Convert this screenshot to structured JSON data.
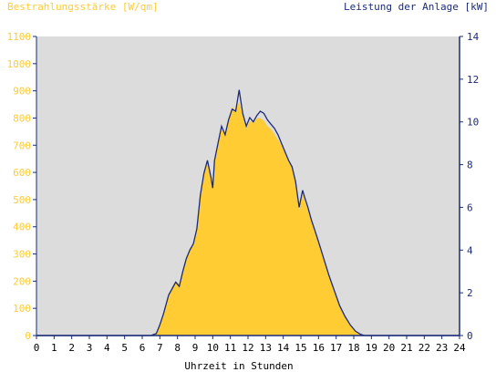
{
  "chart_data": {
    "type": "area",
    "left_axis_label": "Bestrahlungsstärke [W/qm]",
    "right_axis_label": "Leistung der Anlage [kW]",
    "xlabel": "Uhrzeit in Stunden",
    "x_ticks": [
      "0",
      "1",
      "2",
      "3",
      "4",
      "5",
      "6",
      "7",
      "8",
      "9",
      "10",
      "11",
      "12",
      "13",
      "14",
      "15",
      "16",
      "17",
      "18",
      "19",
      "20",
      "21",
      "22",
      "23",
      "24"
    ],
    "left_ticks": [
      "0",
      "100",
      "200",
      "300",
      "400",
      "500",
      "600",
      "700",
      "800",
      "900",
      "1000",
      "1100"
    ],
    "right_ticks": [
      "0",
      "2",
      "4",
      "6",
      "8",
      "10",
      "12",
      "14"
    ],
    "xlim": [
      0,
      24
    ],
    "ylim_left": [
      0,
      1100
    ],
    "ylim_right": [
      0,
      14
    ],
    "colors": {
      "irradiance": "#ffcc33",
      "power": "#1a2b7a",
      "plot_bg": "#dcdcdc",
      "left_axis_text": "#ffcc33",
      "right_axis_text": "#1a2b7a"
    },
    "series": [
      {
        "axis": "left",
        "style": "area",
        "x": [
          6.5,
          6.8,
          7.0,
          7.2,
          7.5,
          7.7,
          7.9,
          8.1,
          8.3,
          8.5,
          8.7,
          8.9,
          9.1,
          9.3,
          9.5,
          9.7,
          9.9,
          10.0,
          10.1,
          10.3,
          10.5,
          10.7,
          10.9,
          11.1,
          11.3,
          11.5,
          11.7,
          11.9,
          12.1,
          12.3,
          12.5,
          12.7,
          12.9,
          13.1,
          13.3,
          13.5,
          13.7,
          13.9,
          14.1,
          14.3,
          14.5,
          14.7,
          14.9,
          15.1,
          15.2,
          15.4,
          15.6,
          15.8,
          16.0,
          16.3,
          16.6,
          16.9,
          17.2,
          17.5,
          17.8,
          18.1,
          18.4,
          18.6,
          18.8,
          18.9
        ],
        "values": [
          0,
          10,
          40,
          80,
          150,
          180,
          200,
          190,
          240,
          290,
          320,
          340,
          400,
          520,
          600,
          640,
          580,
          540,
          650,
          700,
          760,
          740,
          790,
          840,
          830,
          860,
          810,
          760,
          790,
          780,
          800,
          800,
          790,
          770,
          760,
          740,
          720,
          700,
          670,
          640,
          620,
          560,
          460,
          520,
          500,
          460,
          420,
          380,
          340,
          280,
          220,
          160,
          110,
          70,
          40,
          15,
          5,
          0,
          0,
          0
        ]
      },
      {
        "axis": "right",
        "style": "line",
        "x": [
          0,
          6.5,
          6.8,
          7.0,
          7.2,
          7.5,
          7.7,
          7.9,
          8.1,
          8.3,
          8.5,
          8.7,
          8.9,
          9.1,
          9.3,
          9.5,
          9.7,
          9.9,
          10.0,
          10.1,
          10.3,
          10.5,
          10.7,
          10.9,
          11.1,
          11.3,
          11.5,
          11.7,
          11.9,
          12.1,
          12.3,
          12.5,
          12.7,
          12.9,
          13.1,
          13.3,
          13.5,
          13.7,
          13.9,
          14.1,
          14.3,
          14.5,
          14.7,
          14.9,
          15.1,
          15.2,
          15.4,
          15.6,
          15.8,
          16.0,
          16.3,
          16.6,
          16.9,
          17.2,
          17.5,
          17.8,
          18.1,
          18.4,
          18.6,
          18.8,
          18.9,
          24
        ],
        "values": [
          0,
          0,
          0.1,
          0.5,
          1.0,
          1.9,
          2.2,
          2.5,
          2.3,
          3.0,
          3.6,
          4.0,
          4.3,
          5.0,
          6.6,
          7.6,
          8.2,
          7.4,
          6.9,
          8.2,
          9.0,
          9.8,
          9.4,
          10.1,
          10.6,
          10.5,
          11.5,
          10.4,
          9.8,
          10.2,
          10.0,
          10.3,
          10.5,
          10.4,
          10.1,
          9.9,
          9.7,
          9.4,
          9.0,
          8.6,
          8.2,
          7.9,
          7.2,
          6.0,
          6.8,
          6.5,
          6.0,
          5.4,
          4.9,
          4.4,
          3.6,
          2.8,
          2.1,
          1.4,
          0.9,
          0.5,
          0.2,
          0.05,
          0,
          0,
          0,
          0
        ]
      }
    ]
  }
}
